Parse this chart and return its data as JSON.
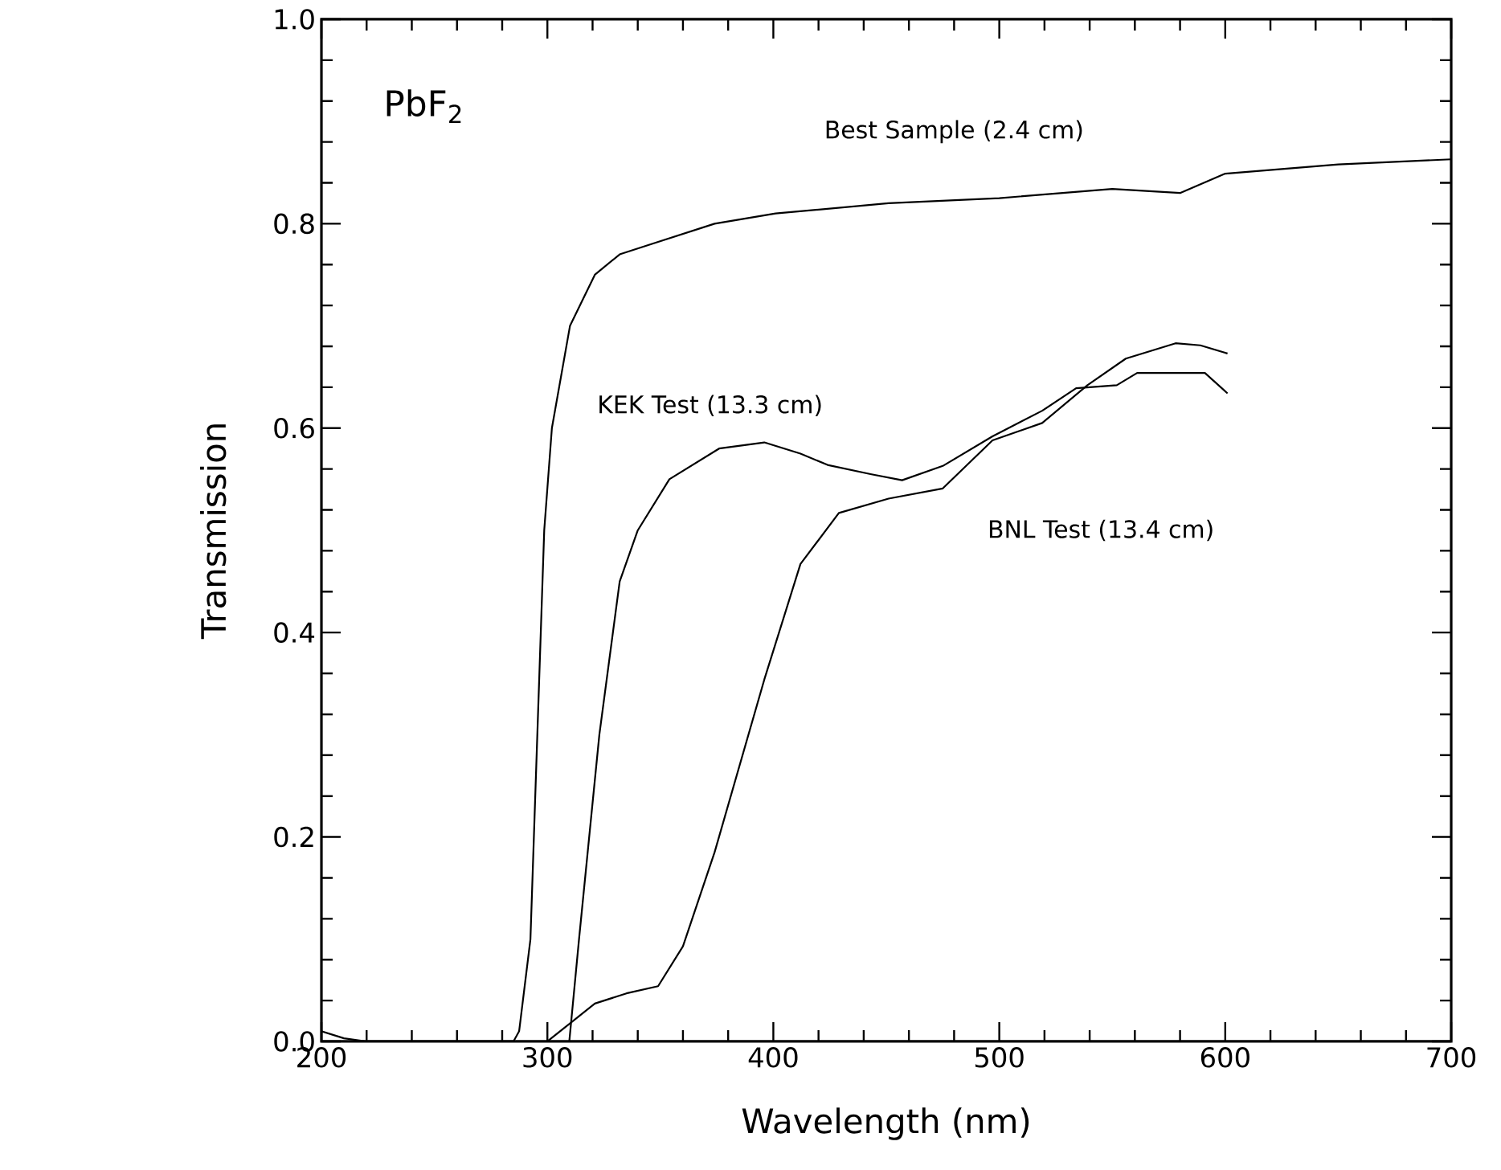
{
  "chart_data": {
    "type": "line",
    "xlabel": "Wavelength (nm)",
    "ylabel": "Transmission",
    "xlim": [
      200,
      700
    ],
    "ylim": [
      0,
      1.0
    ],
    "xticks": [
      200,
      300,
      400,
      500,
      600,
      700
    ],
    "yticks": [
      {
        "value": 0,
        "label": "0.0"
      },
      0.2,
      0.4,
      0.6,
      0.8,
      {
        "value": 1.0,
        "label": "1.0"
      }
    ],
    "grid": false,
    "legend": false,
    "marker": "none",
    "line_style": "solid",
    "annotations": [
      "PbF$_{2}$"
    ],
    "series": [
      {
        "name": "Best Sample (2.4 cm)",
        "color": "#000000",
        "x": [
          200,
          210,
          220,
          250,
          285,
          287.5,
          292.5,
          298.6,
          302,
          310,
          321,
          332,
          346,
          374,
          401,
          451,
          500,
          550,
          580,
          600,
          650,
          700
        ],
        "values": [
          0.01,
          0.003,
          0,
          0,
          0,
          0.01,
          0.1,
          0.5,
          0.6,
          0.7,
          0.75,
          0.77,
          0.78,
          0.8,
          0.81,
          0.82,
          0.825,
          0.834,
          0.83,
          0.849,
          0.858,
          0.863
        ]
      },
      {
        "name": "KEK Test (13.3 cm)",
        "color": "#000000",
        "x": [
          309.7,
          314,
          323,
          332,
          340,
          354,
          376,
          396,
          412,
          424,
          443,
          457,
          475,
          497,
          519,
          534,
          552,
          561,
          591,
          601
        ],
        "values": [
          0,
          0.1,
          0.3,
          0.45,
          0.5,
          0.55,
          0.58,
          0.586,
          0.575,
          0.564,
          0.555,
          0.549,
          0.563,
          0.592,
          0.617,
          0.639,
          0.642,
          0.654,
          0.654,
          0.634
        ]
      },
      {
        "name": "BNL Test (13.4 cm)",
        "color": "#000000",
        "x": [
          300,
          321,
          335,
          349,
          360,
          374,
          396,
          412,
          429,
          451,
          475,
          497,
          519,
          539,
          556,
          578,
          589,
          601
        ],
        "values": [
          0,
          0.037,
          0.047,
          0.054,
          0.093,
          0.185,
          0.354,
          0.467,
          0.517,
          0.531,
          0.541,
          0.588,
          0.605,
          0.642,
          0.668,
          0.683,
          0.681,
          0.673
        ]
      }
    ]
  }
}
